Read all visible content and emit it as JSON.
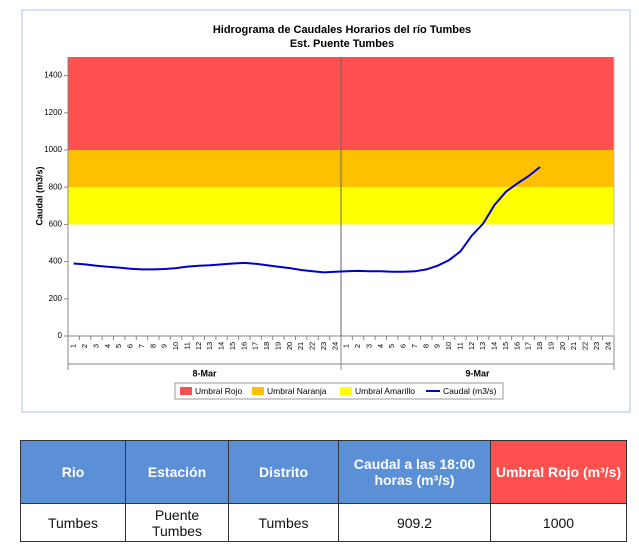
{
  "chart_data": {
    "type": "line",
    "title": "Hidrograma de Caudales Horarios del río Tumbes",
    "subtitle": "Est. Puente Tumbes",
    "y_label": "Caudal  (m3/s)",
    "ylim": [
      0,
      1500
    ],
    "yticks": [
      0,
      200,
      400,
      600,
      800,
      1000,
      1200,
      1400
    ],
    "categories": [
      "1",
      "2",
      "3",
      "4",
      "5",
      "6",
      "7",
      "8",
      "9",
      "10",
      "11",
      "12",
      "13",
      "14",
      "15",
      "16",
      "17",
      "18",
      "19",
      "20",
      "21",
      "22",
      "23",
      "24",
      "1",
      "2",
      "3",
      "4",
      "5",
      "6",
      "7",
      "8",
      "9",
      "10",
      "11",
      "12",
      "13",
      "14",
      "15",
      "16",
      "17",
      "18",
      "19",
      "20",
      "21",
      "22",
      "23",
      "24"
    ],
    "day_labels": [
      "8-Mar",
      "9-Mar"
    ],
    "thresholds": [
      {
        "name": "Umbral Rojo",
        "color": "#ff5050",
        "range": [
          1000,
          1500
        ]
      },
      {
        "name": "Umbral Naranja",
        "color": "#ffc000",
        "range": [
          800,
          1000
        ]
      },
      {
        "name": "Umbral Amarillo",
        "color": "#ffff00",
        "range": [
          600,
          800
        ]
      }
    ],
    "series": [
      {
        "name": "Caudal (m3/s)",
        "color": "#0000cc",
        "values": [
          390,
          385,
          378,
          372,
          368,
          362,
          358,
          358,
          360,
          365,
          373,
          378,
          380,
          385,
          390,
          393,
          388,
          380,
          372,
          365,
          355,
          348,
          342,
          345,
          348,
          350,
          348,
          348,
          345,
          345,
          348,
          358,
          378,
          408,
          455,
          540,
          605,
          705,
          775,
          820,
          860,
          909.2,
          null,
          null,
          null,
          null,
          null,
          null
        ]
      }
    ]
  },
  "table": {
    "header": [
      "Rio",
      "Estación",
      "Distrito",
      "Caudal a las 18:00 horas (m³/s)",
      "Umbral Rojo (m³/s)"
    ],
    "rows": [
      [
        "Tumbes",
        "Puente Tumbes",
        "Tumbes",
        "909.2",
        "1000"
      ]
    ]
  }
}
